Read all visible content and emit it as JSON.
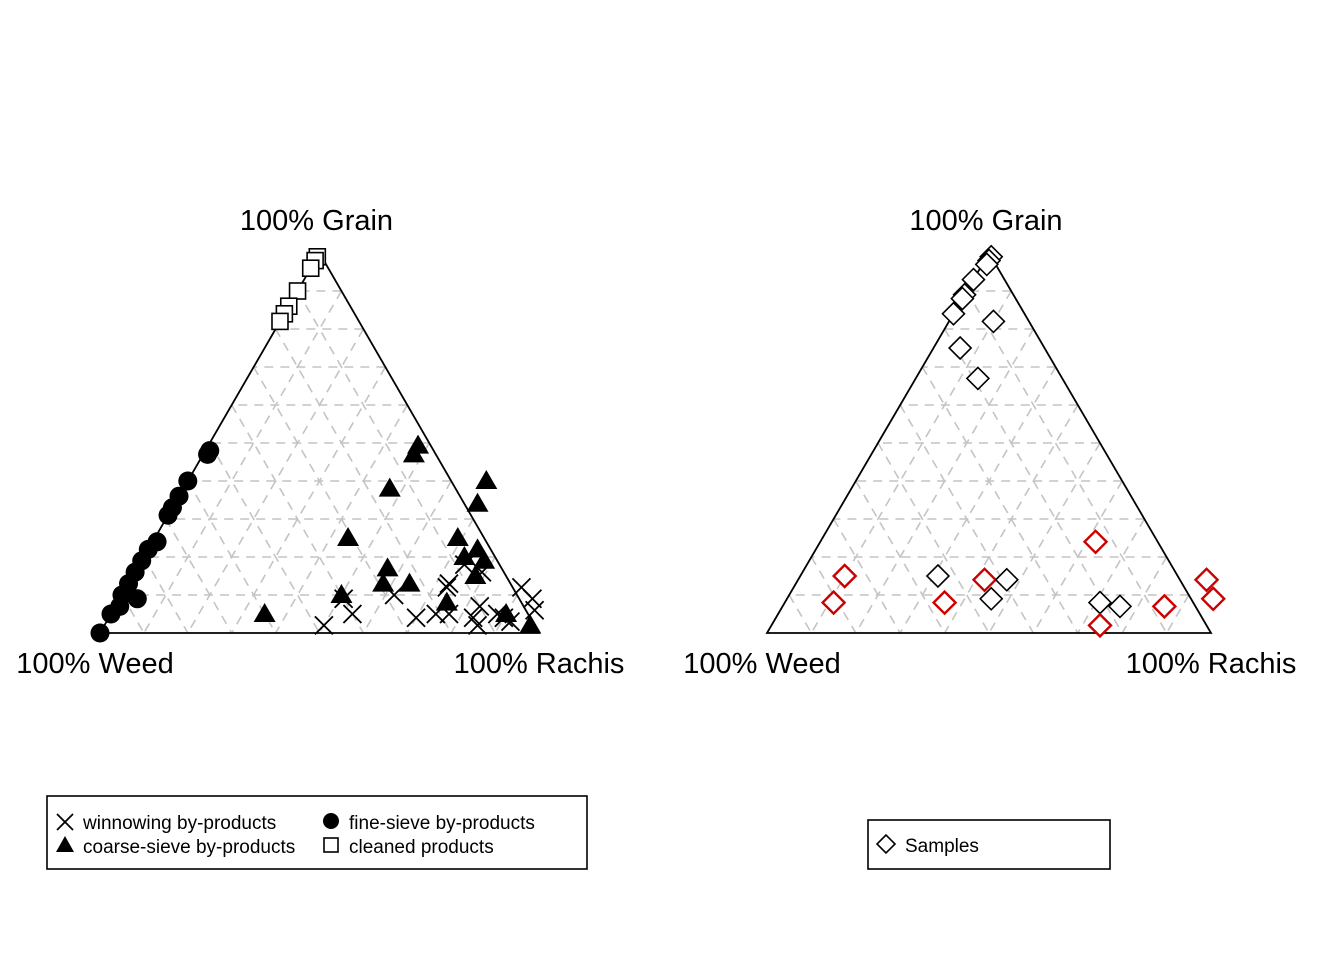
{
  "chart_data": [
    {
      "type": "scatter",
      "subtype": "ternary",
      "axes": {
        "top": "100% Grain",
        "left": "100% Weed",
        "right": "100% Rachis"
      },
      "units": "percent",
      "grid": true,
      "grid_step": 10,
      "legend": {
        "position": "bottom",
        "entries": [
          "winnowing by-products",
          "fine-sieve by-products",
          "coarse-sieve by-products",
          "cleaned products"
        ]
      },
      "series": [
        {
          "name": "winnowing by-products",
          "marker": "cross",
          "points": [
            {
              "grain": 9,
              "rachis": 51,
              "weed": 40
            },
            {
              "grain": 2,
              "rachis": 50,
              "weed": 48
            },
            {
              "grain": 5,
              "rachis": 55,
              "weed": 40
            },
            {
              "grain": 10,
              "rachis": 62,
              "weed": 28
            },
            {
              "grain": 12,
              "rachis": 73,
              "weed": 15
            },
            {
              "grain": 4,
              "rachis": 70,
              "weed": 26
            },
            {
              "grain": 5,
              "rachis": 74,
              "weed": 21
            },
            {
              "grain": 4,
              "rachis": 83,
              "weed": 13
            },
            {
              "grain": 5,
              "rachis": 77,
              "weed": 18
            },
            {
              "grain": 7,
              "rachis": 83,
              "weed": 10
            },
            {
              "grain": 2,
              "rachis": 85,
              "weed": 13
            },
            {
              "grain": 4,
              "rachis": 90,
              "weed": 6
            },
            {
              "grain": 9,
              "rachis": 94,
              "weed": -3
            },
            {
              "grain": 12,
              "rachis": 90,
              "weed": -2
            },
            {
              "grain": 16,
              "rachis": 79,
              "weed": 5
            },
            {
              "grain": 18,
              "rachis": 74,
              "weed": 8
            },
            {
              "grain": 13,
              "rachis": 73,
              "weed": 14
            },
            {
              "grain": 3,
              "rachis": 92,
              "weed": 5
            },
            {
              "grain": 5,
              "rachis": 88,
              "weed": 7
            },
            {
              "grain": 6,
              "rachis": 96,
              "weed": -2
            }
          ]
        },
        {
          "name": "fine-sieve by-products",
          "marker": "circle",
          "points": [
            {
              "grain": 0,
              "rachis": 0,
              "weed": 100
            },
            {
              "grain": 48,
              "rachis": 1,
              "weed": 51
            },
            {
              "grain": 47,
              "rachis": 1,
              "weed": 52
            },
            {
              "grain": 40,
              "rachis": 0,
              "weed": 60
            },
            {
              "grain": 36,
              "rachis": 0,
              "weed": 64
            },
            {
              "grain": 33,
              "rachis": 0,
              "weed": 67
            },
            {
              "grain": 31,
              "rachis": 0,
              "weed": 69
            },
            {
              "grain": 24,
              "rachis": 1,
              "weed": 75
            },
            {
              "grain": 22,
              "rachis": 0,
              "weed": 78
            },
            {
              "grain": 19,
              "rachis": 0,
              "weed": 81
            },
            {
              "grain": 16,
              "rachis": 0,
              "weed": 84
            },
            {
              "grain": 13,
              "rachis": 0,
              "weed": 87
            },
            {
              "grain": 10,
              "rachis": 0,
              "weed": 90
            },
            {
              "grain": 7,
              "rachis": 1,
              "weed": 92
            },
            {
              "grain": 5,
              "rachis": 0,
              "weed": 95
            },
            {
              "grain": 9,
              "rachis": 4,
              "weed": 87
            }
          ]
        },
        {
          "name": "coarse-sieve by-products",
          "marker": "triangle",
          "points": [
            {
              "grain": 47,
              "rachis": 48,
              "weed": 5
            },
            {
              "grain": 38,
              "rachis": 47,
              "weed": 15
            },
            {
              "grain": 40,
              "rachis": 68,
              "weed": -8
            },
            {
              "grain": 34,
              "rachis": 69,
              "weed": -3
            },
            {
              "grain": 25,
              "rachis": 69,
              "weed": 6
            },
            {
              "grain": 20,
              "rachis": 73,
              "weed": 7
            },
            {
              "grain": 22,
              "rachis": 75,
              "weed": 3
            },
            {
              "grain": 19,
              "rachis": 78,
              "weed": 3
            },
            {
              "grain": 15,
              "rachis": 78,
              "weed": 7
            },
            {
              "grain": 16,
              "rachis": 69,
              "weed": -5
            },
            {
              "grain": 17,
              "rachis": 57,
              "weed": 26
            },
            {
              "grain": 13,
              "rachis": 64,
              "weed": 23
            },
            {
              "grain": 13,
              "rachis": 58,
              "weed": 29
            },
            {
              "grain": 10,
              "rachis": 50,
              "weed": 40
            },
            {
              "grain": 25,
              "rachis": 44,
              "weed": 31
            },
            {
              "grain": 5,
              "rachis": 35,
              "weed": 60
            },
            {
              "grain": 8,
              "rachis": 75,
              "weed": 17
            },
            {
              "grain": 5,
              "rachis": 90,
              "weed": 5
            },
            {
              "grain": 2,
              "rachis": 97,
              "weed": 1
            }
          ]
        },
        {
          "name": "cleaned products",
          "marker": "square",
          "points": [
            {
              "grain": 99,
              "rachis": 0,
              "weed": 1
            },
            {
              "grain": 98,
              "rachis": 0,
              "weed": 2
            },
            {
              "grain": 96,
              "rachis": 0,
              "weed": 4
            },
            {
              "grain": 90,
              "rachis": 0,
              "weed": 10
            },
            {
              "grain": 86,
              "rachis": 0,
              "weed": 14
            },
            {
              "grain": 84,
              "rachis": 0,
              "weed": 16
            },
            {
              "grain": 82,
              "rachis": 0,
              "weed": 18
            }
          ]
        }
      ]
    },
    {
      "type": "scatter",
      "subtype": "ternary",
      "axes": {
        "top": "100% Grain",
        "left": "100% Weed",
        "right": "100% Rachis"
      },
      "units": "percent",
      "grid": true,
      "grid_step": 10,
      "legend": {
        "position": "bottom",
        "entries": [
          "Samples"
        ]
      },
      "series": [
        {
          "name": "Samples",
          "marker": "diamond",
          "colors": {
            "default": "#000000",
            "highlight": "#cc0000"
          },
          "points": [
            {
              "grain": 99,
              "rachis": 1,
              "weed": 0,
              "highlight": false
            },
            {
              "grain": 98,
              "rachis": 1,
              "weed": 1,
              "highlight": false
            },
            {
              "grain": 97,
              "rachis": 1,
              "weed": 2,
              "highlight": false
            },
            {
              "grain": 93,
              "rachis": 0,
              "weed": 7,
              "highlight": false
            },
            {
              "grain": 89,
              "rachis": 0,
              "weed": 11,
              "highlight": false
            },
            {
              "grain": 88,
              "rachis": 0,
              "weed": 12,
              "highlight": false
            },
            {
              "grain": 84,
              "rachis": 0,
              "weed": 16,
              "highlight": false
            },
            {
              "grain": 82,
              "rachis": 10,
              "weed": 8,
              "highlight": false
            },
            {
              "grain": 75,
              "rachis": 6,
              "weed": 19,
              "highlight": false
            },
            {
              "grain": 67,
              "rachis": 14,
              "weed": 19,
              "highlight": false
            },
            {
              "grain": 24,
              "rachis": 62,
              "weed": 14,
              "highlight": true
            },
            {
              "grain": 15,
              "rachis": 10,
              "weed": 75,
              "highlight": true
            },
            {
              "grain": 8,
              "rachis": 11,
              "weed": 81,
              "highlight": true
            },
            {
              "grain": 15,
              "rachis": 31,
              "weed": 54,
              "highlight": false
            },
            {
              "grain": 14,
              "rachis": 42,
              "weed": 44,
              "highlight": true
            },
            {
              "grain": 14,
              "rachis": 47,
              "weed": 39,
              "highlight": false
            },
            {
              "grain": 8,
              "rachis": 36,
              "weed": 56,
              "highlight": true
            },
            {
              "grain": 9,
              "rachis": 46,
              "weed": 45,
              "highlight": false
            },
            {
              "grain": 8,
              "rachis": 71,
              "weed": 21,
              "highlight": false
            },
            {
              "grain": 7,
              "rachis": 76,
              "weed": 17,
              "highlight": false
            },
            {
              "grain": 2,
              "rachis": 74,
              "weed": 24,
              "highlight": true
            },
            {
              "grain": 7,
              "rachis": 86,
              "weed": 7,
              "highlight": true
            },
            {
              "grain": 14,
              "rachis": 92,
              "weed": -6,
              "highlight": true
            },
            {
              "grain": 9,
              "rachis": 96,
              "weed": -5,
              "highlight": true
            }
          ]
        }
      ]
    }
  ]
}
